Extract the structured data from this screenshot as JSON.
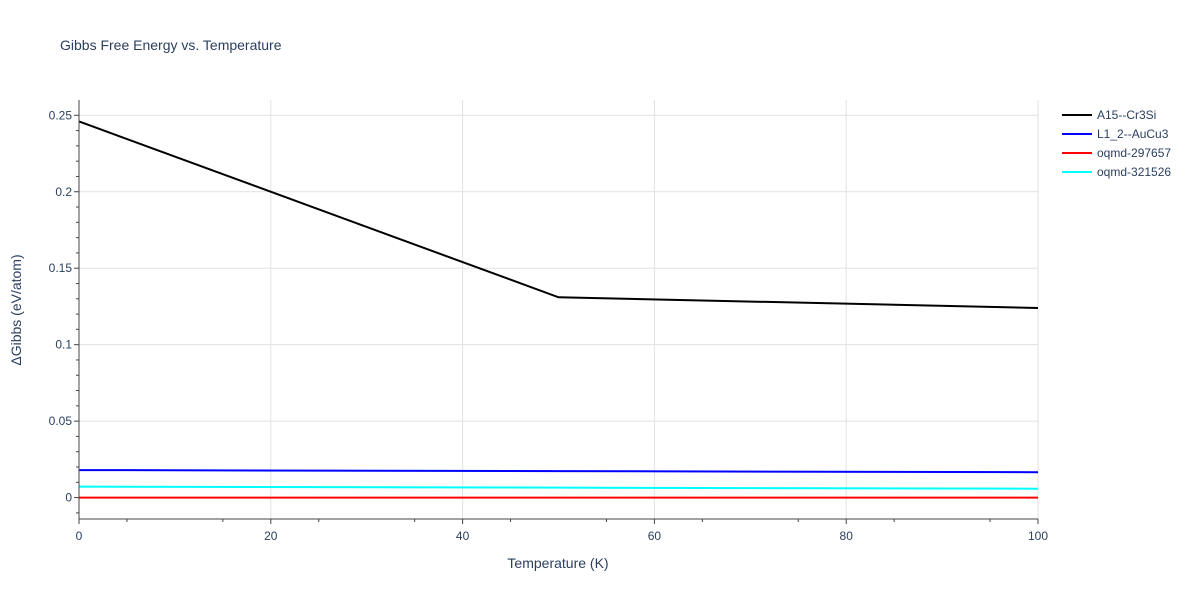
{
  "chart_data": {
    "type": "line",
    "title": "Gibbs Free Energy vs. Temperature",
    "xlabel": "Temperature (K)",
    "ylabel": "ΔGibbs (eV/atom)",
    "xlim": [
      0,
      100
    ],
    "ylim": [
      -0.014,
      0.26
    ],
    "xticks": [
      0,
      20,
      40,
      60,
      80,
      100
    ],
    "xtick_labels": [
      "0",
      "20",
      "40",
      "60",
      "80",
      "100"
    ],
    "yticks": [
      0,
      0.05,
      0.1,
      0.15,
      0.2,
      0.25
    ],
    "ytick_labels": [
      "0",
      "0.05",
      "0.1",
      "0.15",
      "0.2",
      "0.25"
    ],
    "grid": true,
    "legend_position": "top-right",
    "series": [
      {
        "name": "A15--Cr3Si",
        "color": "#000000",
        "x": [
          0,
          50,
          100
        ],
        "y": [
          0.246,
          0.131,
          0.124
        ]
      },
      {
        "name": "L1_2--AuCu3",
        "color": "#0000ff",
        "x": [
          0,
          50,
          100
        ],
        "y": [
          0.018,
          0.0173,
          0.0166
        ]
      },
      {
        "name": "oqmd-297657",
        "color": "#ff0000",
        "x": [
          0,
          50,
          100
        ],
        "y": [
          0,
          0,
          0
        ]
      },
      {
        "name": "oqmd-321526",
        "color": "#00ffff",
        "x": [
          0,
          50,
          100
        ],
        "y": [
          0.0072,
          0.0065,
          0.0058
        ]
      }
    ]
  }
}
